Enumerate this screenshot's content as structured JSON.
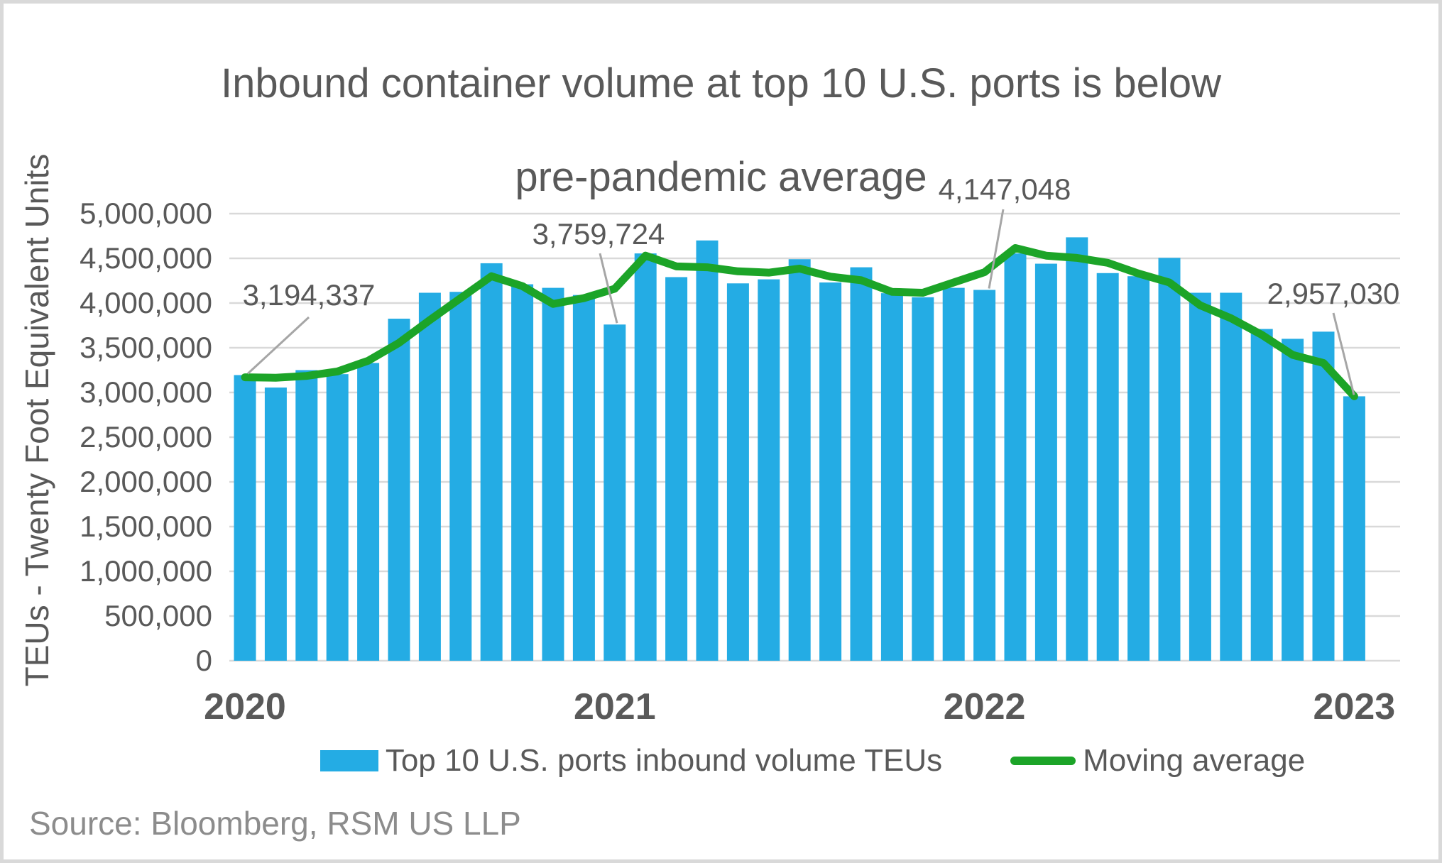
{
  "title": {
    "line1": "Inbound container volume at top 10 U.S. ports is below",
    "line2": "pre-pandemic average"
  },
  "y_axis": {
    "title": "TEUs - Twenty Foot Equivalent Units",
    "tick_labels": [
      "0",
      "500,000",
      "1,000,000",
      "1,500,000",
      "2,000,000",
      "2,500,000",
      "3,000,000",
      "3,500,000",
      "4,000,000",
      "4,500,000",
      "5,000,000"
    ],
    "min": 0,
    "max": 5000000,
    "step": 500000
  },
  "x_axis": {
    "year_ticks": [
      {
        "label": "2020",
        "index": 0
      },
      {
        "label": "2021",
        "index": 12
      },
      {
        "label": "2022",
        "index": 24
      },
      {
        "label": "2023",
        "index": 36
      }
    ]
  },
  "legend": {
    "items": [
      {
        "label": "Top 10 U.S. ports inbound volume TEUs",
        "type": "bar"
      },
      {
        "label": "Moving average",
        "type": "line"
      }
    ]
  },
  "source": "Source: Bloomberg, RSM US LLP",
  "colors": {
    "bar": "#24ACE4",
    "line": "#1CA428",
    "grid": "#D9D9D9",
    "axis_text": "#595959",
    "annotation_text": "#595959",
    "leader": "#A6A6A6",
    "source_text": "#8C8C8C",
    "border": "#D9D9D9"
  },
  "chart_data": {
    "type": "bar",
    "title": "Inbound container volume at top 10 U.S. ports is below pre-pandemic average",
    "xlabel": "",
    "ylabel": "TEUs - Twenty Foot Equivalent Units",
    "ylim": [
      0,
      5000000
    ],
    "grid": true,
    "legend_position": "bottom",
    "categories": [
      "2020-01",
      "2020-02",
      "2020-03",
      "2020-04",
      "2020-05",
      "2020-06",
      "2020-07",
      "2020-08",
      "2020-09",
      "2020-10",
      "2020-11",
      "2020-12",
      "2021-01",
      "2021-02",
      "2021-03",
      "2021-04",
      "2021-05",
      "2021-06",
      "2021-07",
      "2021-08",
      "2021-09",
      "2021-10",
      "2021-11",
      "2021-12",
      "2022-01",
      "2022-02",
      "2022-03",
      "2022-04",
      "2022-05",
      "2022-06",
      "2022-07",
      "2022-08",
      "2022-09",
      "2022-10",
      "2022-11",
      "2022-12",
      "2023-01"
    ],
    "series": [
      {
        "name": "Top 10 U.S. ports inbound volume TEUs",
        "type": "bar",
        "values": [
          3194337,
          3055000,
          3250000,
          3205000,
          3330000,
          3825000,
          4115000,
          4125000,
          4445000,
          4210000,
          4170000,
          4090000,
          3759724,
          4555000,
          4290000,
          4700000,
          4220000,
          4265000,
          4490000,
          4230000,
          4400000,
          4110000,
          4065000,
          4170000,
          4147048,
          4555000,
          4440000,
          4735000,
          4335000,
          4300000,
          4505000,
          4115000,
          4115000,
          3710000,
          3600000,
          3680000,
          2957030
        ]
      },
      {
        "name": "Moving average",
        "type": "line",
        "values": [
          3170000,
          3165000,
          3185000,
          3235000,
          3355000,
          3555000,
          3810000,
          4055000,
          4300000,
          4190000,
          3990000,
          4055000,
          4160000,
          4530000,
          4410000,
          4400000,
          4355000,
          4340000,
          4385000,
          4295000,
          4255000,
          4125000,
          4115000,
          4230000,
          4345000,
          4615000,
          4530000,
          4505000,
          4450000,
          4330000,
          4230000,
          3975000,
          3830000,
          3645000,
          3420000,
          3330000,
          2957030
        ]
      }
    ],
    "annotations": [
      {
        "text": "3,194,337",
        "index": 0
      },
      {
        "text": "3,759,724",
        "index": 12
      },
      {
        "text": "4,147,048",
        "index": 24
      },
      {
        "text": "2,957,030",
        "index": 36
      }
    ]
  }
}
